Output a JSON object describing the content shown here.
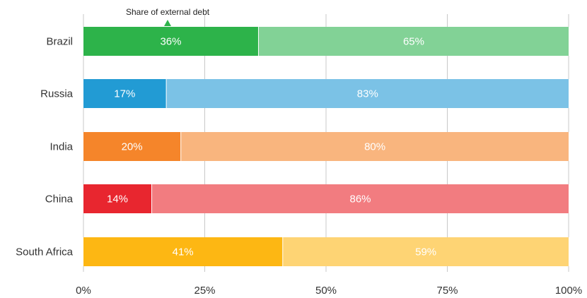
{
  "chart_data": {
    "type": "bar",
    "orientation": "horizontal",
    "stacked": true,
    "title": "",
    "xlabel": "",
    "ylabel": "",
    "xlim": [
      0,
      100
    ],
    "xticks": [
      "0%",
      "25%",
      "50%",
      "75%",
      "100%"
    ],
    "grid": "vertical",
    "annotation": "Share of external debt",
    "categories": [
      "Brazil",
      "Russia",
      "India",
      "China",
      "South Africa"
    ],
    "series": [
      {
        "values": [
          36,
          17,
          20,
          14,
          41
        ],
        "labels": [
          "36%",
          "17%",
          "20%",
          "14%",
          "41%"
        ],
        "colors": [
          "#2db34a",
          "#229bd4",
          "#f5852a",
          "#e8262f",
          "#fdb713"
        ]
      },
      {
        "values": [
          65,
          83,
          80,
          86,
          59
        ],
        "labels": [
          "65%",
          "83%",
          "80%",
          "86%",
          "59%"
        ],
        "colors": [
          "#82d296",
          "#7bc2e6",
          "#f9b57e",
          "#f27c80",
          "#fed474"
        ]
      }
    ]
  }
}
